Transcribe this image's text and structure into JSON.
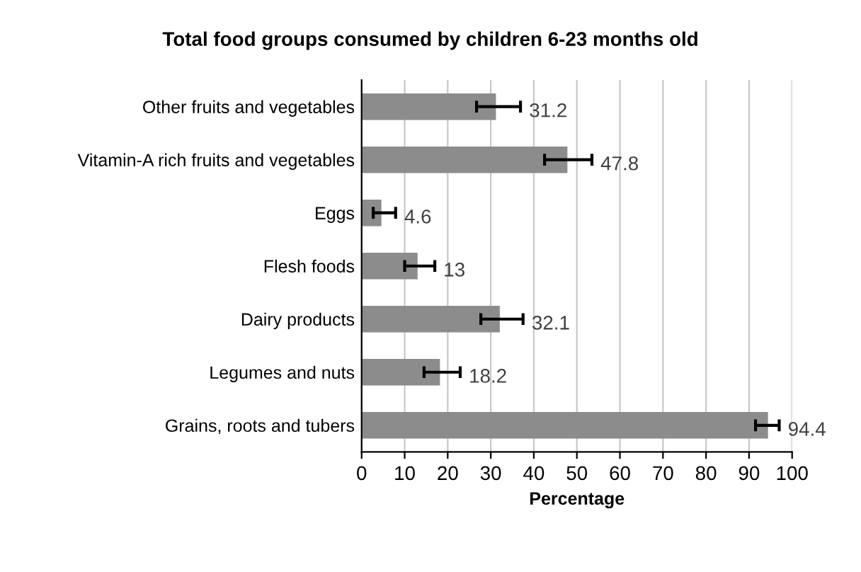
{
  "chart_data": {
    "type": "bar",
    "orientation": "horizontal",
    "title": "Total food groups consumed by children 6-23 months old",
    "xlabel": "Percentage",
    "categories": [
      "Other fruits and vegetables",
      "Vitamin-A rich fruits and vegetables",
      "Eggs",
      "Flesh foods",
      "Dairy products",
      "Legumes and nuts",
      "Grains, roots and tubers"
    ],
    "values": [
      31.2,
      47.8,
      4.6,
      13,
      32.1,
      18.2,
      94.4
    ],
    "errors": [
      [
        26.7,
        36.9
      ],
      [
        42.5,
        53.5
      ],
      [
        2.7,
        7.9
      ],
      [
        10,
        17
      ],
      [
        27.7,
        37.5
      ],
      [
        14.5,
        22.9
      ],
      [
        91.5,
        97
      ]
    ],
    "color": "#8c8c8c",
    "xlim": [
      0,
      100
    ],
    "xticks": [
      0,
      10,
      20,
      30,
      40,
      50,
      60,
      70,
      80,
      90,
      100
    ],
    "grid": "x",
    "data_labels": true
  }
}
